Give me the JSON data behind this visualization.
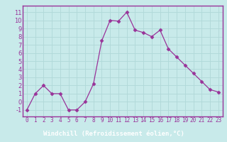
{
  "x": [
    0,
    1,
    2,
    3,
    4,
    5,
    6,
    7,
    8,
    9,
    10,
    11,
    12,
    13,
    14,
    15,
    16,
    17,
    18,
    19,
    20,
    21,
    22,
    23
  ],
  "y": [
    -1,
    1,
    2,
    1,
    1,
    -1,
    -1,
    0,
    2.2,
    7.5,
    10,
    9.9,
    11,
    8.8,
    8.5,
    8,
    8.8,
    6.5,
    5.5,
    4.5,
    3.5,
    2.5,
    1.5,
    1.2
  ],
  "line_color": "#993399",
  "marker": "D",
  "marker_size": 2.5,
  "bg_color": "#c8eaea",
  "grid_color": "#b0d8d8",
  "spine_color": "#993399",
  "xlabel": "Windchill (Refroidissement éolien,°C)",
  "xlabel_color": "#ffffff",
  "xlabel_bg": "#993399",
  "ylabel_ticks": [
    -1,
    0,
    1,
    2,
    3,
    4,
    5,
    6,
    7,
    8,
    9,
    10,
    11
  ],
  "xlim": [
    -0.5,
    23.5
  ],
  "ylim": [
    -1.8,
    11.8
  ],
  "tick_color": "#993399",
  "tick_fontsize": 5.5,
  "ytick_fontsize": 6.0
}
